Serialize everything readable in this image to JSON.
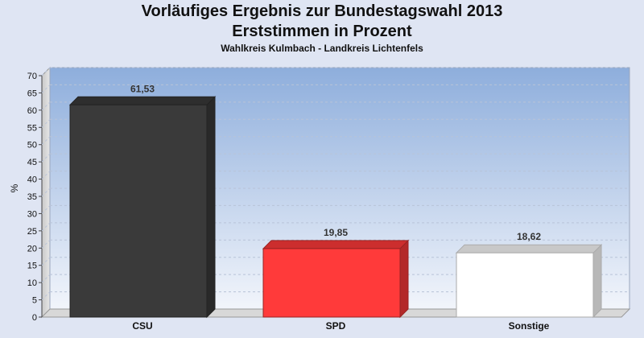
{
  "chart_data": {
    "type": "bar",
    "title": "Vorläufiges Ergebnis zur Bundestagswahl 2013",
    "subtitle": "Erststimmen in Prozent",
    "caption": "Wahlkreis Kulmbach - Landkreis Lichtenfels",
    "ylabel": "%",
    "ylim": [
      0,
      70
    ],
    "ytick_step": 5,
    "grid": true,
    "legend": "none",
    "categories": [
      "CSU",
      "SPD",
      "Sonstige"
    ],
    "values": [
      61.53,
      19.85,
      18.62
    ],
    "value_labels": [
      "61,53",
      "19,85",
      "18,62"
    ],
    "colors": [
      "#3a3a3a",
      "#ff3a3a",
      "#ffffff"
    ]
  }
}
